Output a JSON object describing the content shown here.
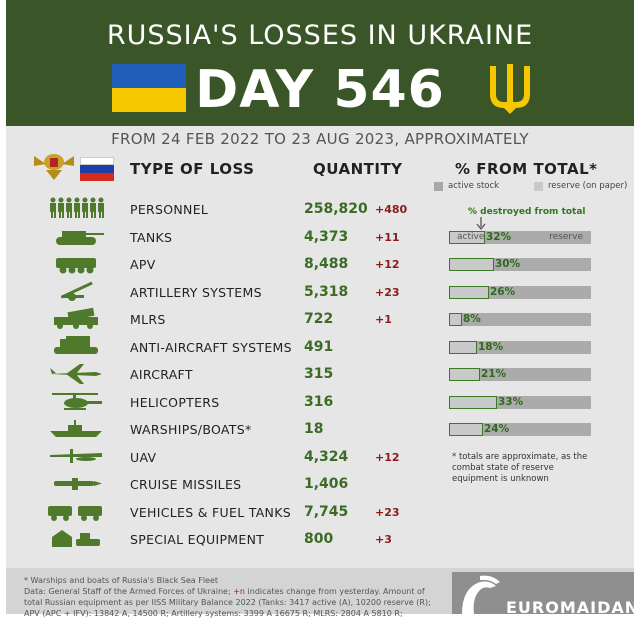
{
  "header": {
    "title": "RUSSIA'S LOSSES IN UKRAINE",
    "day": "DAY 546",
    "subtitle": "FROM 24 FEB 2022 TO 23 AUG 2023, APPROXIMATELY"
  },
  "columns": {
    "type": "TYPE OF LOSS",
    "quantity": "QUANTITY",
    "percent": "% FROM TOTAL*"
  },
  "legend": {
    "active": "active stock",
    "reserve": "reserve (on paper)",
    "destroyed_hint": "% destroyed from total",
    "in_bar_active": "active",
    "in_bar_reserve": "reserve"
  },
  "colors": {
    "header_bg": "#3a5527",
    "quantity": "#3c6b26",
    "change": "#8a1c1c",
    "active_bar": "#c9c9c9",
    "reserve_bar": "#ababab",
    "ukraine_blue": "#1e5eb8",
    "ukraine_yellow": "#f5c800"
  },
  "rows": [
    {
      "icon": "soldiers-icon",
      "label": "PERSONNEL",
      "qty": "258,820",
      "chg": "+480"
    },
    {
      "icon": "tank-icon",
      "label": "TANKS",
      "qty": "4,373",
      "chg": "+11"
    },
    {
      "icon": "apv-icon",
      "label": "APV",
      "qty": "8,488",
      "chg": "+12"
    },
    {
      "icon": "artillery-icon",
      "label": "ARTILLERY SYSTEMS",
      "qty": "5,318",
      "chg": "+23"
    },
    {
      "icon": "mlrs-icon",
      "label": "MLRS",
      "qty": "722",
      "chg": "+1"
    },
    {
      "icon": "anti-aircraft-icon",
      "label": "ANTI-AIRCRAFT SYSTEMS",
      "qty": "491",
      "chg": ""
    },
    {
      "icon": "aircraft-icon",
      "label": "AIRCRAFT",
      "qty": "315",
      "chg": ""
    },
    {
      "icon": "helicopter-icon",
      "label": "HELICOPTERS",
      "qty": "316",
      "chg": ""
    },
    {
      "icon": "warship-icon",
      "label": "WARSHIPS/BOATS*",
      "qty": "18",
      "chg": ""
    },
    {
      "icon": "uav-icon",
      "label": "UAV",
      "qty": "4,324",
      "chg": "+12"
    },
    {
      "icon": "cruise-missile-icon",
      "label": "CRUISE MISSILES",
      "qty": "1,406",
      "chg": ""
    },
    {
      "icon": "fuel-truck-icon",
      "label": "VEHICLES & FUEL TANKS",
      "qty": "7,745",
      "chg": "+23"
    },
    {
      "icon": "special-equipment-icon",
      "label": "SPECIAL EQUIPMENT",
      "qty": "800",
      "chg": "+3"
    }
  ],
  "chart_data": {
    "type": "bar",
    "title": "% FROM TOTAL*",
    "categories": [
      "TANKS",
      "APV",
      "ARTILLERY SYSTEMS",
      "MLRS",
      "ANTI-AIRCRAFT SYSTEMS",
      "AIRCRAFT",
      "HELICOPTERS",
      "WARSHIPS/BOATS*"
    ],
    "series": [
      {
        "name": "% destroyed from total",
        "values": [
          32,
          30,
          26,
          8,
          18,
          21,
          33,
          24
        ]
      },
      {
        "name": "active stock",
        "values": [
          0.25,
          0.32,
          0.28,
          0.09,
          0.2,
          0.22,
          0.34,
          0.24
        ]
      }
    ],
    "percent_labels": [
      "32%",
      "30%",
      "26%",
      "8%",
      "18%",
      "21%",
      "33%",
      "24%"
    ],
    "ylim": [
      0,
      100
    ]
  },
  "note": "* totals are approximate, as the combat state of reserve equipment is unknown",
  "footer": {
    "line1": "* Warships and boats of Russia's Black Sea Fleet",
    "line2a": "Data: General Staff of the Armed Forces of Ukraine; ",
    "line2plus": "+n",
    "line2b": " indicates change from yesterday. Amount of",
    "line3": "total Russian equipment as per IISS Military Balance 2022 (Tanks: 3417 active (A), 10200 reserve (R);",
    "line4": "APV (APC + IFV): 13842 A, 14500 R; Artillery systems: 3399 A 16675 R; MLRS: 2804 A 5810 R;",
    "brand": "EUROMAIDAN"
  }
}
